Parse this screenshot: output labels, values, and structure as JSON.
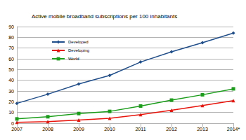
{
  "chart_data": {
    "type": "line",
    "title": "Active mobile broadband subscriptions per 100 inhabitants",
    "categories": [
      "2007",
      "2008",
      "2009",
      "2010",
      "2011",
      "2012",
      "2013",
      "2014*"
    ],
    "series": [
      {
        "name": "Developed",
        "color": "#1f4e8c",
        "marker": "diamond",
        "line_style": "solid",
        "values": [
          18.5,
          27,
          36.5,
          44.5,
          57,
          66.5,
          75,
          84
        ]
      },
      {
        "name": "Developing",
        "color": "#e8140b",
        "marker": "triangle",
        "line_style": "solid",
        "values": [
          0.8,
          1.5,
          3,
          4.5,
          8,
          12,
          16.5,
          21
        ]
      },
      {
        "name": "World",
        "color": "#1a9e1a",
        "marker": "square",
        "line_style": "solid",
        "values": [
          4,
          6,
          9,
          11,
          16,
          21.5,
          26.5,
          32
        ]
      }
    ],
    "ylim": [
      0,
      90
    ],
    "yticks": [
      0,
      10,
      20,
      30,
      40,
      50,
      60,
      70,
      80,
      90
    ],
    "grid": true,
    "legend": "top-left"
  }
}
